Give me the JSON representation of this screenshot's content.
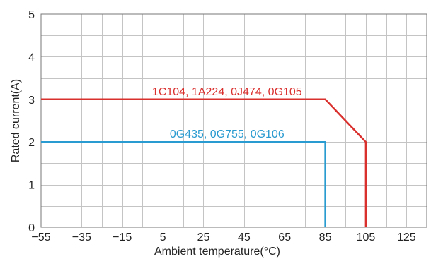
{
  "chart_data": {
    "type": "line",
    "xlabel": "Ambient temperature(°C)",
    "ylabel": "Rated current(A)",
    "xlim": [
      -55,
      135
    ],
    "ylim": [
      0,
      5
    ],
    "x_ticks": [
      -55,
      -35,
      -15,
      5,
      25,
      45,
      65,
      85,
      105,
      125
    ],
    "x_tick_labels": [
      "−55",
      "−35",
      "−15",
      "5",
      "25",
      "45",
      "65",
      "85",
      "105",
      "125"
    ],
    "y_ticks": [
      0,
      1,
      2,
      3,
      4,
      5
    ],
    "y_tick_labels": [
      "0",
      "1",
      "2",
      "3",
      "4",
      "5"
    ],
    "grid": true,
    "series": [
      {
        "name": "1C104, 1A224, 0J474, 0G105",
        "color": "#d9302e",
        "x": [
          -55,
          85,
          105,
          105
        ],
        "y": [
          3,
          3,
          2,
          0
        ]
      },
      {
        "name": "0G435, 0G755, 0G106",
        "color": "#2a9bd0",
        "x": [
          -55,
          85,
          85
        ],
        "y": [
          2,
          2,
          0
        ]
      }
    ]
  }
}
